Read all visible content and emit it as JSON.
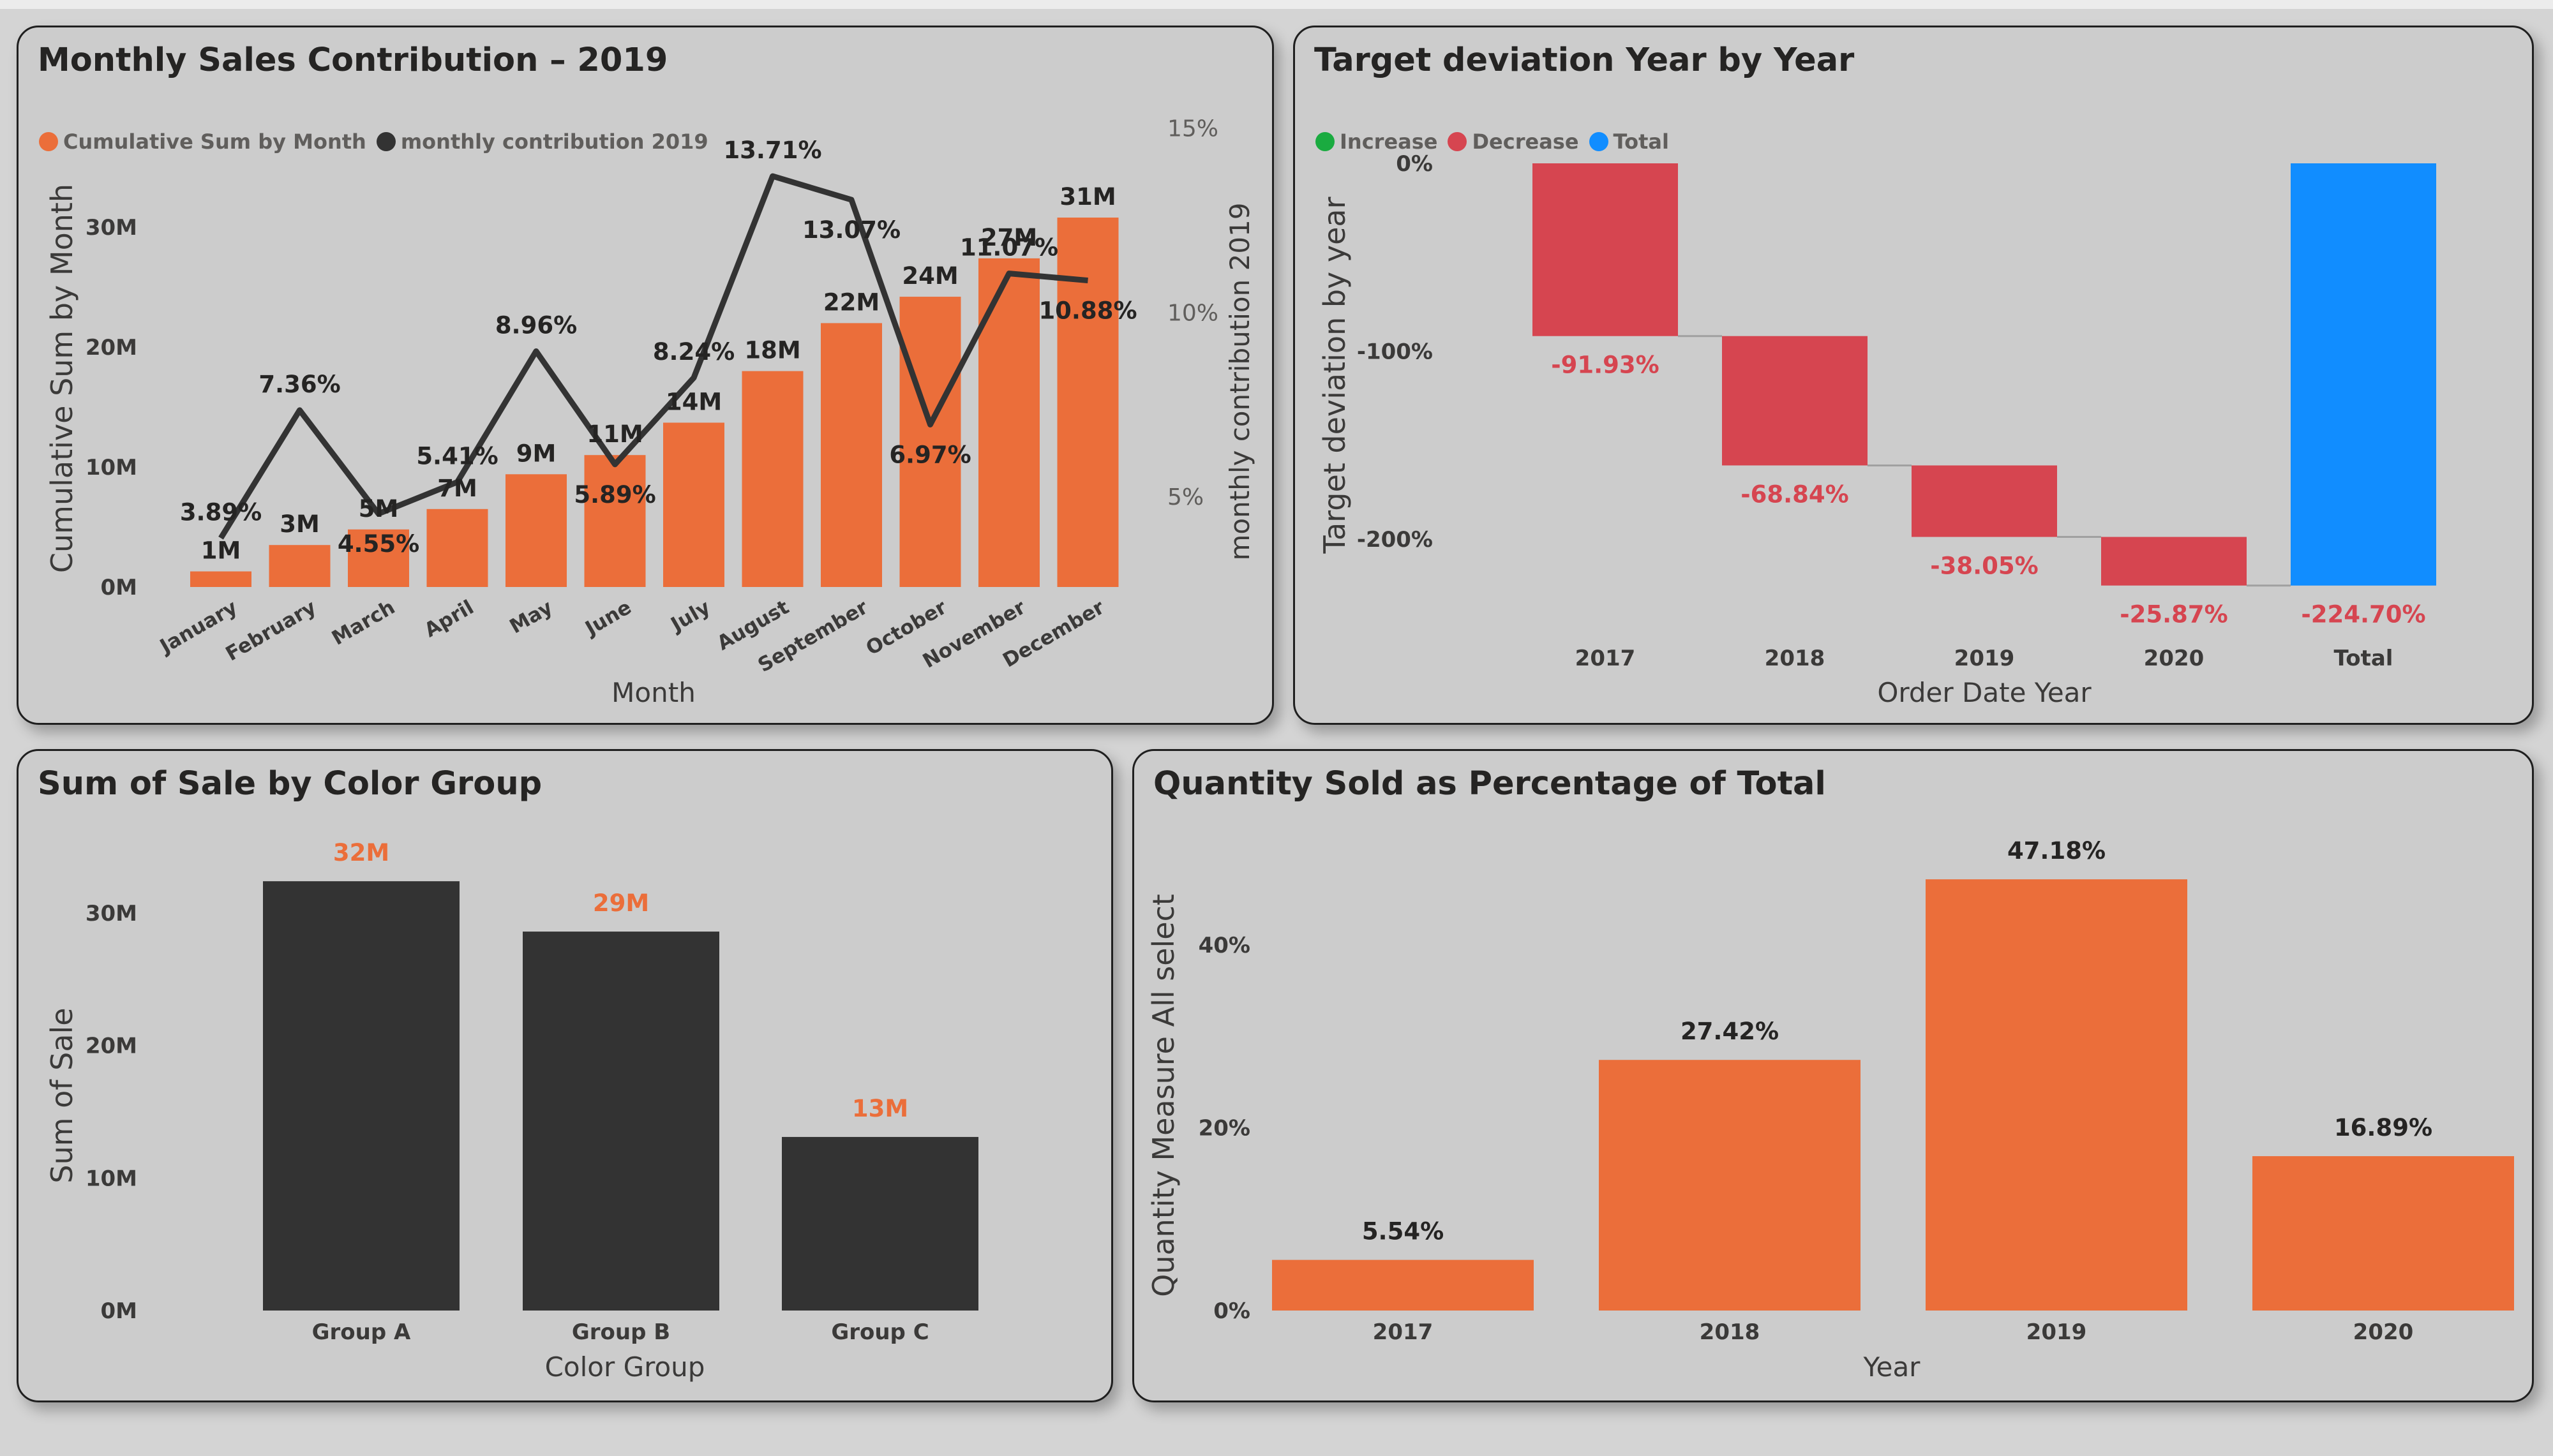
{
  "colors": {
    "orange": "#eb6e3a",
    "dark": "#333333",
    "red": "#d64550",
    "green": "#1aab40",
    "blue": "#118dff"
  },
  "panels": {
    "monthly": {
      "title": "Monthly Sales Contribution – 2019"
    },
    "deviation": {
      "title": "Target deviation Year by Year"
    },
    "color_group": {
      "title": "Sum of Sale by Color Group"
    },
    "quantity": {
      "title": "Quantity Sold as Percentage of Total"
    }
  },
  "chart_data": [
    {
      "type": "bar+line",
      "title": "Monthly Sales Contribution – 2019",
      "categories": [
        "January",
        "February",
        "March",
        "April",
        "May",
        "June",
        "July",
        "August",
        "September",
        "October",
        "November",
        "December"
      ],
      "series": [
        {
          "name": "Cumulative Sum by Month",
          "type": "bar",
          "axis": "left",
          "values": [
            1.3,
            3.5,
            4.8,
            6.5,
            9.4,
            11.0,
            13.7,
            18.0,
            22.0,
            24.2,
            27.4,
            30.8
          ],
          "labels": [
            "1M",
            "3M",
            "5M",
            "7M",
            "9M",
            "11M",
            "14M",
            "18M",
            "22M",
            "24M",
            "27M",
            "31M"
          ]
        },
        {
          "name": "monthly contribution 2019",
          "type": "line",
          "axis": "right",
          "values": [
            3.89,
            7.36,
            4.55,
            5.41,
            8.96,
            5.89,
            8.24,
            13.71,
            13.07,
            6.97,
            11.07,
            10.88
          ],
          "labels": [
            "3.89%",
            "7.36%",
            "4.55%",
            "5.41%",
            "8.96%",
            "5.89%",
            "8.24%",
            "13.71%",
            "13.07%",
            "6.97%",
            "11.07%",
            "10.88%"
          ]
        }
      ],
      "xlabel": "Month",
      "ylabel": "Cumulative Sum by Month",
      "y2label": "monthly contribution 2019",
      "yticks": [
        "0M",
        "10M",
        "20M",
        "30M"
      ],
      "y2ticks": [
        "5%",
        "10%",
        "15%"
      ],
      "ylim": [
        0,
        31
      ],
      "y2lim": [
        0,
        15
      ],
      "legend": "top-left"
    },
    {
      "type": "waterfall",
      "title": "Target deviation Year by Year",
      "legend_items": [
        {
          "name": "Increase",
          "color": "#1aab40"
        },
        {
          "name": "Decrease",
          "color": "#d64550"
        },
        {
          "name": "Total",
          "color": "#118dff"
        }
      ],
      "categories": [
        "2017",
        "2018",
        "2019",
        "2020",
        "Total"
      ],
      "values": [
        -91.93,
        -68.84,
        -38.05,
        -25.87,
        -224.7
      ],
      "kinds": [
        "decrease",
        "decrease",
        "decrease",
        "decrease",
        "total"
      ],
      "labels": [
        "-91.93%",
        "-68.84%",
        "-38.05%",
        "-25.87%",
        "-224.70%"
      ],
      "xlabel": "Order Date Year",
      "ylabel": "Target deviation by year",
      "yticks": [
        "0%",
        "-100%",
        "-200%"
      ],
      "ylim": [
        -224.7,
        0
      ],
      "legend": "top-left"
    },
    {
      "type": "bar",
      "title": "Sum of Sale by Color Group",
      "categories": [
        "Group A",
        "Group B",
        "Group C"
      ],
      "values": [
        32.4,
        28.6,
        13.1
      ],
      "labels": [
        "32M",
        "29M",
        "13M"
      ],
      "xlabel": "Color Group",
      "ylabel": "Sum of Sale",
      "yticks": [
        "0M",
        "10M",
        "20M",
        "30M"
      ],
      "ylim": [
        0,
        32.4
      ]
    },
    {
      "type": "bar",
      "title": "Quantity Sold as Percentage of Total",
      "categories": [
        "2017",
        "2018",
        "2019",
        "2020"
      ],
      "values": [
        5.54,
        27.42,
        47.18,
        16.89
      ],
      "labels": [
        "5.54%",
        "27.42%",
        "47.18%",
        "16.89%"
      ],
      "xlabel": "Year",
      "ylabel": "Quantity Measure All select",
      "yticks": [
        "0%",
        "20%",
        "40%"
      ],
      "ylim": [
        0,
        47.18
      ]
    }
  ]
}
